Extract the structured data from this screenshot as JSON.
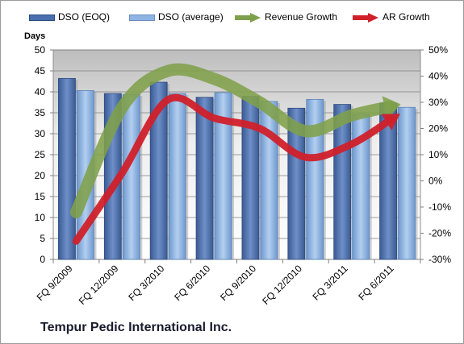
{
  "chart_data": {
    "type": "bar",
    "title": "Tempur Pedic International Inc.",
    "ylabel": "Days",
    "categories": [
      "FQ 9/2009",
      "FQ 12/2009",
      "FQ 3/2010",
      "FQ 6/2010",
      "FQ 9/2010",
      "FQ 12/2010",
      "FQ 3/2011",
      "FQ 6/2011"
    ],
    "ylim": [
      0,
      50
    ],
    "y_ticks": [
      "0",
      "5",
      "10",
      "15",
      "20",
      "25",
      "30",
      "35",
      "40",
      "45",
      "50"
    ],
    "y2lim": [
      -30,
      50
    ],
    "y2_ticks": [
      "-30%",
      "-20%",
      "-10%",
      "0%",
      "10%",
      "20%",
      "30%",
      "40%",
      "50%"
    ],
    "series": [
      {
        "name": "DSO (EOQ)",
        "type": "bar",
        "axis": "left",
        "color": "#4a6fb0",
        "values": [
          43.2,
          39.6,
          42.3,
          38.7,
          38.9,
          36.1,
          37.0,
          37.3
        ]
      },
      {
        "name": "DSO (average)",
        "type": "bar",
        "axis": "left",
        "color": "#8fb4e3",
        "values": [
          40.3,
          39.4,
          39.6,
          39.8,
          37.7,
          38.2,
          34.6,
          36.3
        ]
      },
      {
        "name": "Revenue Growth",
        "type": "line",
        "axis": "right",
        "color": "#7fa04a",
        "values": [
          -12,
          28,
          42,
          39,
          30,
          19,
          25,
          29
        ]
      },
      {
        "name": "AR Growth",
        "type": "line",
        "axis": "right",
        "color": "#d0202a",
        "values": [
          -23,
          3,
          31,
          24,
          20,
          9,
          14,
          25
        ]
      }
    ],
    "grid": true,
    "legend": "top"
  },
  "company_label": "Tempur Pedic International Inc."
}
